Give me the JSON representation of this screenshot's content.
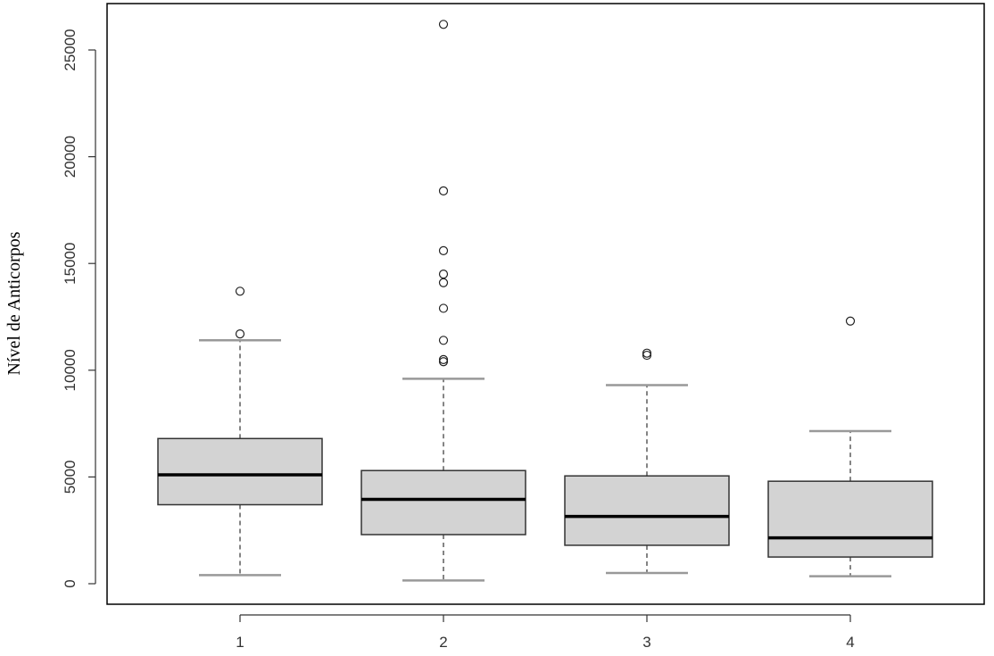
{
  "chart_data": {
    "type": "boxplot",
    "title": "",
    "xlabel": "",
    "ylabel": "Nível de Anticorpos",
    "ylim": [
      -900,
      27300
    ],
    "y_ticks": [
      0,
      5000,
      10000,
      15000,
      20000,
      25000
    ],
    "grid": false,
    "legend": "none",
    "categories": [
      "1",
      "2",
      "3",
      "4"
    ],
    "boxes": [
      {
        "category": "1",
        "whisker_low": 400,
        "q1": 3700,
        "median": 5100,
        "q3": 6800,
        "whisker_high": 11400,
        "outliers": [
          11700,
          13700
        ]
      },
      {
        "category": "2",
        "whisker_low": 150,
        "q1": 2300,
        "median": 3950,
        "q3": 5300,
        "whisker_high": 9600,
        "outliers": [
          10400,
          10500,
          11400,
          12900,
          14100,
          14500,
          15600,
          18400,
          26200
        ]
      },
      {
        "category": "3",
        "whisker_low": 500,
        "q1": 1800,
        "median": 3150,
        "q3": 5050,
        "whisker_high": 9300,
        "outliers": [
          10700,
          10800
        ]
      },
      {
        "category": "4",
        "whisker_low": 350,
        "q1": 1250,
        "median": 2150,
        "q3": 4800,
        "whisker_high": 7150,
        "outliers": [
          12300
        ]
      }
    ],
    "colors": {
      "box_fill": "#d3d3d3",
      "stroke": "#000000",
      "whisker": "#333333",
      "cap": "#999999"
    }
  }
}
